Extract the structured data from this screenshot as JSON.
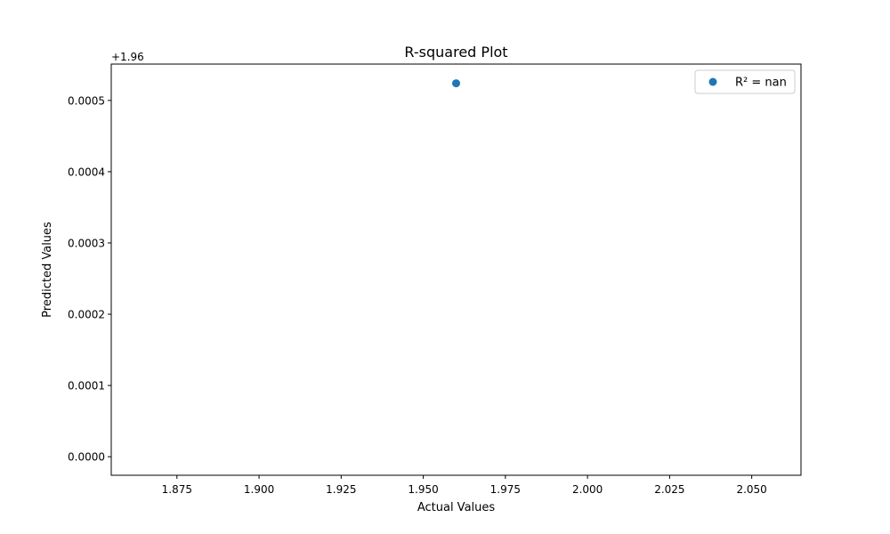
{
  "chart_data": {
    "type": "scatter",
    "title": "R-squared Plot",
    "xlabel": "Actual Values",
    "ylabel": "Predicted Values",
    "xlim": [
      1.855,
      2.065
    ],
    "ylim": [
      -2.6e-05,
      0.000551
    ],
    "y_offset_label": "+1.96",
    "x_ticks": [
      1.875,
      1.9,
      1.925,
      1.95,
      1.975,
      2.0,
      2.025,
      2.05
    ],
    "x_tick_labels": [
      "1.875",
      "1.900",
      "1.925",
      "1.950",
      "1.975",
      "2.000",
      "2.025",
      "2.050"
    ],
    "y_ticks": [
      0.0,
      0.0001,
      0.0002,
      0.0003,
      0.0004,
      0.0005
    ],
    "y_tick_labels": [
      "0.0000",
      "0.0001",
      "0.0002",
      "0.0003",
      "0.0004",
      "0.0005"
    ],
    "series": [
      {
        "name": "R² = nan",
        "color": "#1f77b4",
        "points": [
          {
            "x": 1.96,
            "y": 0.000524
          }
        ]
      }
    ],
    "legend": {
      "placement": "top-right",
      "entries": [
        "R² = nan"
      ]
    },
    "grid": false
  }
}
